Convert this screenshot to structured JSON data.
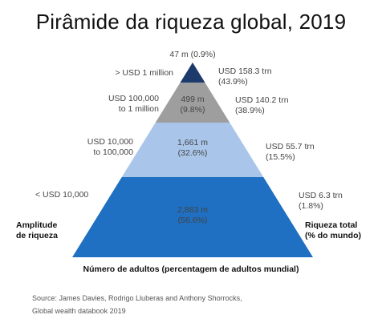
{
  "title": "Pirâmide da riqueza global, 2019",
  "chart_data": {
    "type": "pyramid",
    "title": "Pirâmide da riqueza global, 2019",
    "tiers": [
      {
        "wealth_range": "< USD 10,000",
        "adults": "2,883 m",
        "adults_share": "(56.6%)",
        "adults_millions": 2883,
        "adults_pct": 56.6,
        "wealth_total": "USD 6.3 trn",
        "wealth_share": "(1.8%)",
        "wealth_trn": 6.3,
        "wealth_pct": 1.8,
        "color": "#1f6fc2"
      },
      {
        "wealth_range": "USD 10,000 to 100,000",
        "wealth_range_lines": [
          "USD 10,000",
          "to 100,000"
        ],
        "adults": "1,661 m",
        "adults_share": "(32.6%)",
        "adults_millions": 1661,
        "adults_pct": 32.6,
        "wealth_total": "USD 55.7 trn",
        "wealth_share": "(15.5%)",
        "wealth_trn": 55.7,
        "wealth_pct": 15.5,
        "color": "#a9c6ea"
      },
      {
        "wealth_range": "USD 100,000 to 1 million",
        "wealth_range_lines": [
          "USD 100,000",
          "to 1 million"
        ],
        "adults": "499 m",
        "adults_share": "(9.8%)",
        "adults_millions": 499,
        "adults_pct": 9.8,
        "wealth_total": "USD 140.2 trn",
        "wealth_share": "(38.9%)",
        "wealth_trn": 140.2,
        "wealth_pct": 38.9,
        "color": "#9e9e9e"
      },
      {
        "wealth_range": "> USD 1 million",
        "adults": "47 m",
        "adults_share": "(0.9%)",
        "adults_millions": 47,
        "adults_pct": 0.9,
        "wealth_total": "USD 158.3 trn",
        "wealth_share": "(43.9%)",
        "wealth_trn": 158.3,
        "wealth_pct": 43.9,
        "color": "#1c3a6b"
      }
    ],
    "left_axis_label": [
      "Amplitude",
      "de riqueza"
    ],
    "right_axis_label": [
      "Riqueza total",
      "(% do mundo)"
    ],
    "bottom_label": "Número de adultos (percentagem de adultos mundial)"
  },
  "source": {
    "line1": "Source: James Davies, Rodrigo Lluberas and Anthony Shorrocks,",
    "line2": "Global wealth databook 2019"
  }
}
